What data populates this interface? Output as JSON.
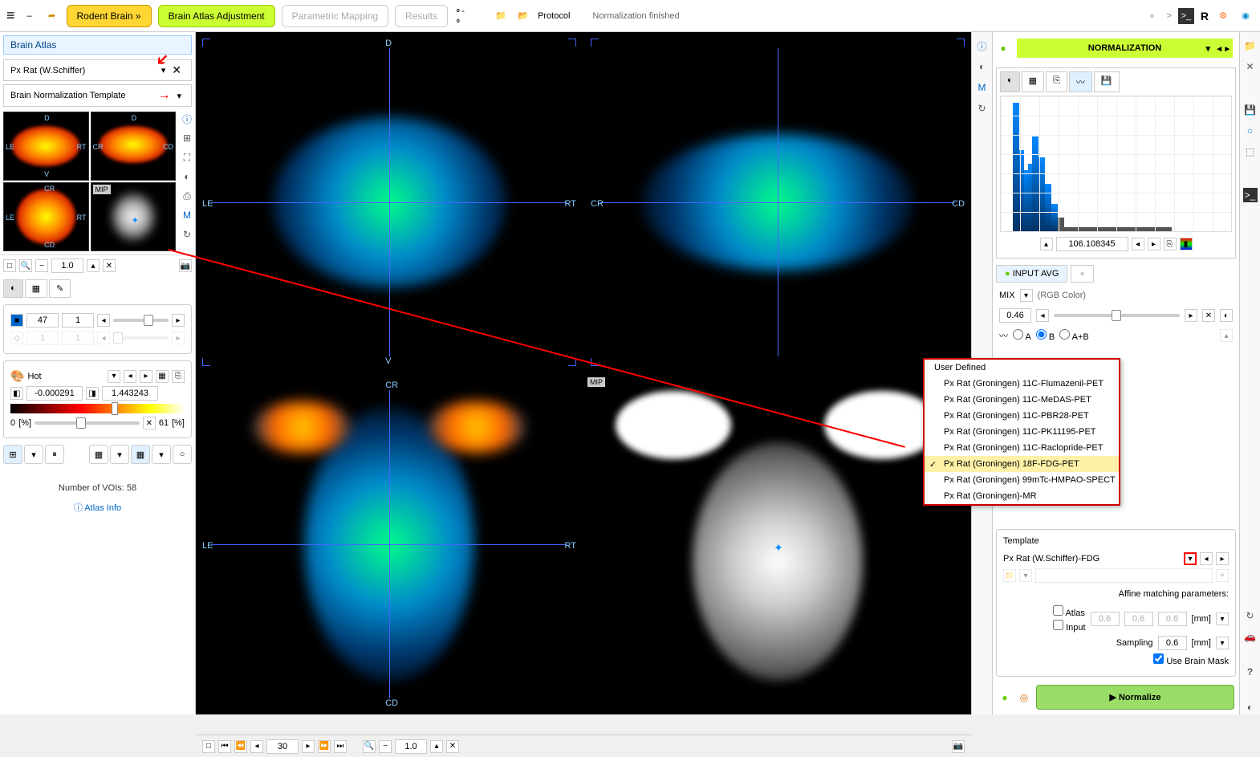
{
  "toolbar": {
    "rodent_brain": "Rodent Brain »",
    "brain_atlas_adj": "Brain Atlas Adjustment",
    "parametric_mapping": "Parametric Mapping",
    "results": "Results",
    "protocol": "Protocol",
    "status": "Normalization finished",
    "r_label": "R"
  },
  "left": {
    "tab": "Brain Atlas",
    "atlas_selected": "Px Rat (W.Schiffer)",
    "template_selected": "Brain Normalization Template",
    "mip_badge": "MIP",
    "zoom_value": "1.0",
    "level_a": "47",
    "level_b": "1",
    "colormap": "Hot",
    "min_val": "-0.000291",
    "max_val": "1.443243",
    "pct_left": "0",
    "pct_right": "61",
    "pct_unit_l": "[%]",
    "pct_unit_r": "[%]",
    "voi_count": "Number of VOIs: 58",
    "atlas_info": "Atlas Info",
    "thumb_labels": {
      "d": "D",
      "v": "V",
      "le": "LE",
      "rt": "RT",
      "cr": "CR",
      "cd": "CD"
    }
  },
  "center": {
    "frame_num": "30",
    "zoom": "1.0",
    "labels": {
      "d": "D",
      "v": "V",
      "le": "LE",
      "rt": "RT",
      "cr": "CR",
      "cd": "CD"
    },
    "mip_badge": "MIP"
  },
  "right": {
    "norm_title": "NORMALIZATION",
    "hist_value": "106.108345",
    "input_avg": "INPUT AVG",
    "mix_label": "MIX",
    "mix_mode": "(RGB Color)",
    "mix_value": "0.46",
    "ab_a": "A",
    "ab_b": "B",
    "ab_ab": "A+B",
    "dropdown": {
      "header": "User Defined",
      "items": [
        "Px Rat (Groningen) 11C-Flumazenil-PET",
        "Px Rat (Groningen) 11C-MeDAS-PET",
        "Px Rat (Groningen) 11C-PBR28-PET",
        "Px Rat (Groningen) 11C-PK11195-PET",
        "Px Rat (Groningen) 11C-Raclopride-PET",
        "Px Rat (Groningen) 18F-FDG-PET",
        "Px Rat (Groningen) 99mTc-HMPAO-SPECT",
        "Px Rat (Groningen)-MR"
      ],
      "selected_index": 5
    },
    "template_panel": {
      "title": "Template ",
      "selected": "Px Rat (W.Schiffer)-FDG",
      "affine_label": "Affine matching parameters:",
      "atlas_cb": "Atlas",
      "input_cb": "Input",
      "p1": "0.6",
      "p2": "0.6",
      "p3": "0.6",
      "mm": "[mm]",
      "sampling_label": "Sampling",
      "sampling_val": "0.6",
      "brain_mask": "Use Brain Mask",
      "normalize_btn": "Normalize"
    }
  },
  "colors": {
    "yellow_btn": "#ffd633",
    "green_btn": "#ccff33",
    "highlight": "#fff2a8",
    "red": "#cc0000",
    "blue_text": "#88ccff",
    "crosshair": "#4466ff"
  }
}
